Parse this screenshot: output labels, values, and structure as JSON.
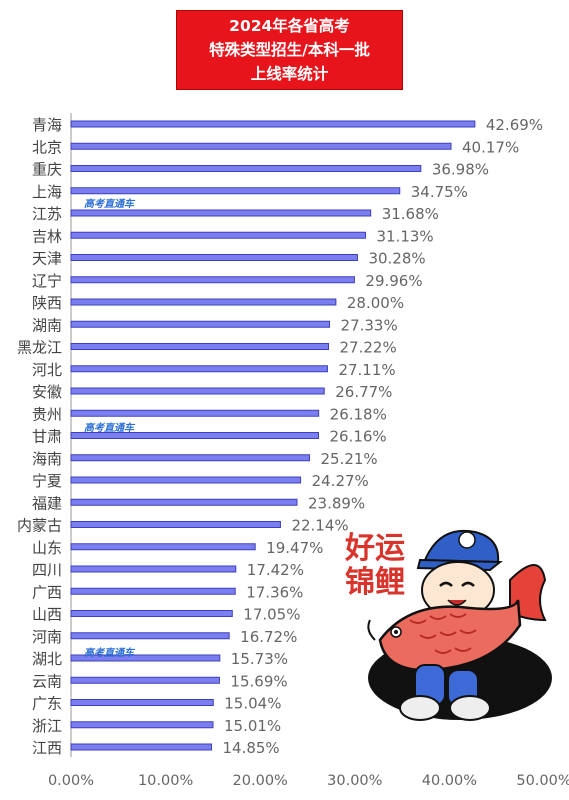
{
  "title": {
    "line1": "2024年各省高考",
    "line2": "特殊类型招生/本科一批",
    "line3": "上线率统计"
  },
  "watermark": "高考直通车",
  "sticker": {
    "line1": "好运",
    "line2": "锦鲤"
  },
  "colors": {
    "title_bg": "#e8141b",
    "bar_fill": "#7b7ef0",
    "bar_border": "#3e40b8",
    "watermark": "#2d6fd6"
  },
  "chart_data": {
    "type": "bar",
    "orientation": "horizontal",
    "categories": [
      "青海",
      "北京",
      "重庆",
      "上海",
      "江苏",
      "吉林",
      "天津",
      "辽宁",
      "陕西",
      "湖南",
      "黑龙江",
      "河北",
      "安徽",
      "贵州",
      "甘肃",
      "海南",
      "宁夏",
      "福建",
      "内蒙古",
      "山东",
      "四川",
      "广西",
      "山西",
      "河南",
      "湖北",
      "云南",
      "广东",
      "浙江",
      "江西"
    ],
    "values": [
      42.69,
      40.17,
      36.98,
      34.75,
      31.68,
      31.13,
      30.28,
      29.96,
      28.0,
      27.33,
      27.22,
      27.11,
      26.77,
      26.18,
      26.16,
      25.21,
      24.27,
      23.89,
      22.14,
      19.47,
      17.42,
      17.36,
      17.05,
      16.72,
      15.73,
      15.69,
      15.04,
      15.01,
      14.85
    ],
    "value_labels": [
      "42.69%",
      "40.17%",
      "36.98%",
      "34.75%",
      "31.68%",
      "31.13%",
      "30.28%",
      "29.96%",
      "28.00%",
      "27.33%",
      "27.22%",
      "27.11%",
      "26.77%",
      "26.18%",
      "26.16%",
      "25.21%",
      "24.27%",
      "23.89%",
      "22.14%",
      "19.47%",
      "17.42%",
      "17.36%",
      "17.05%",
      "16.72%",
      "15.73%",
      "15.69%",
      "15.04%",
      "15.01%",
      "14.85%"
    ],
    "xlim": [
      0,
      50
    ],
    "xticks": [
      "0.00%",
      "10.00%",
      "20.00%",
      "30.00%",
      "40.00%",
      "50.00%"
    ],
    "grid": false,
    "legend": "none"
  }
}
